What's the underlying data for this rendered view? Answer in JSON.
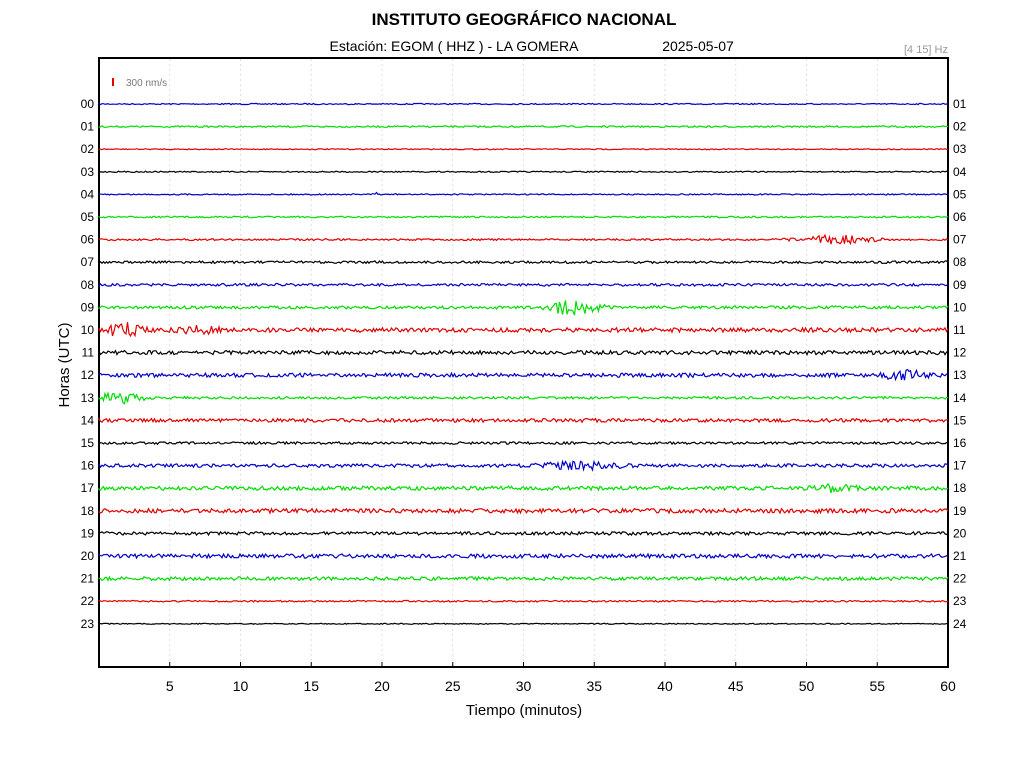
{
  "header": {
    "title": "INSTITUTO GEOGRÁFICO NACIONAL",
    "station": "Estación:  EGOM ( HHZ ) - LA GOMERA",
    "date": "2025-05-07",
    "band": "[4 15] Hz"
  },
  "scale_label": "300 nm/s",
  "colors": {
    "blue": "#0000c8",
    "green": "#00dd00",
    "red": "#e00000",
    "black": "#000000",
    "scale": "#e00000"
  },
  "chart_data": {
    "type": "line",
    "xlabel": "Tiempo (minutos)",
    "ylabel": "Horas (UTC)",
    "xlim": [
      0,
      60
    ],
    "xticks": [
      "5",
      "10",
      "15",
      "20",
      "25",
      "30",
      "35",
      "40",
      "45",
      "50",
      "55",
      "60"
    ],
    "left_labels": [
      "00",
      "01",
      "02",
      "03",
      "04",
      "05",
      "06",
      "07",
      "08",
      "09",
      "10",
      "11",
      "12",
      "13",
      "14",
      "15",
      "16",
      "17",
      "18",
      "19",
      "20",
      "21",
      "22",
      "23"
    ],
    "right_labels": [
      "01",
      "02",
      "03",
      "04",
      "05",
      "06",
      "07",
      "08",
      "09",
      "10",
      "11",
      "12",
      "13",
      "14",
      "15",
      "16",
      "17",
      "18",
      "19",
      "20",
      "21",
      "22",
      "23",
      "24"
    ],
    "traces": [
      {
        "hour": "00",
        "color": "blue",
        "noise": 0.6,
        "bursts": []
      },
      {
        "hour": "01",
        "color": "green",
        "noise": 0.8,
        "bursts": []
      },
      {
        "hour": "02",
        "color": "red",
        "noise": 0.5,
        "bursts": []
      },
      {
        "hour": "03",
        "color": "black",
        "noise": 0.6,
        "bursts": []
      },
      {
        "hour": "04",
        "color": "blue",
        "noise": 0.6,
        "bursts": [
          {
            "t": 19.6,
            "dur": 0.4,
            "amp": 2
          }
        ]
      },
      {
        "hour": "05",
        "color": "green",
        "noise": 0.8,
        "bursts": []
      },
      {
        "hour": "06",
        "color": "red",
        "noise": 0.9,
        "bursts": [
          {
            "t": 52,
            "dur": 5,
            "amp": 4
          }
        ]
      },
      {
        "hour": "07",
        "color": "black",
        "noise": 1.2,
        "bursts": []
      },
      {
        "hour": "08",
        "color": "blue",
        "noise": 1.3,
        "bursts": []
      },
      {
        "hour": "09",
        "color": "green",
        "noise": 1.5,
        "bursts": [
          {
            "t": 33.5,
            "dur": 3.5,
            "amp": 7
          }
        ]
      },
      {
        "hour": "10",
        "color": "red",
        "noise": 2.2,
        "bursts": [
          {
            "t": 1.8,
            "dur": 2.5,
            "amp": 6
          },
          {
            "t": 7,
            "dur": 3,
            "amp": 3
          }
        ]
      },
      {
        "hour": "11",
        "color": "black",
        "noise": 2.0,
        "bursts": []
      },
      {
        "hour": "12",
        "color": "blue",
        "noise": 2.0,
        "bursts": [
          {
            "t": 57,
            "dur": 3,
            "amp": 4
          }
        ]
      },
      {
        "hour": "13",
        "color": "green",
        "noise": 1.2,
        "bursts": [
          {
            "t": 1.5,
            "dur": 3,
            "amp": 5
          }
        ]
      },
      {
        "hour": "14",
        "color": "red",
        "noise": 1.8,
        "bursts": []
      },
      {
        "hour": "15",
        "color": "black",
        "noise": 1.2,
        "bursts": []
      },
      {
        "hour": "16",
        "color": "blue",
        "noise": 1.7,
        "bursts": [
          {
            "t": 34,
            "dur": 6,
            "amp": 3
          }
        ]
      },
      {
        "hour": "17",
        "color": "green",
        "noise": 2.0,
        "bursts": [
          {
            "t": 52,
            "dur": 3,
            "amp": 3
          }
        ]
      },
      {
        "hour": "18",
        "color": "red",
        "noise": 2.2,
        "bursts": []
      },
      {
        "hour": "19",
        "color": "black",
        "noise": 1.6,
        "bursts": []
      },
      {
        "hour": "20",
        "color": "blue",
        "noise": 2.0,
        "bursts": []
      },
      {
        "hour": "21",
        "color": "green",
        "noise": 1.8,
        "bursts": []
      },
      {
        "hour": "22",
        "color": "red",
        "noise": 0.8,
        "bursts": []
      },
      {
        "hour": "23",
        "color": "black",
        "noise": 0.5,
        "bursts": []
      }
    ]
  }
}
